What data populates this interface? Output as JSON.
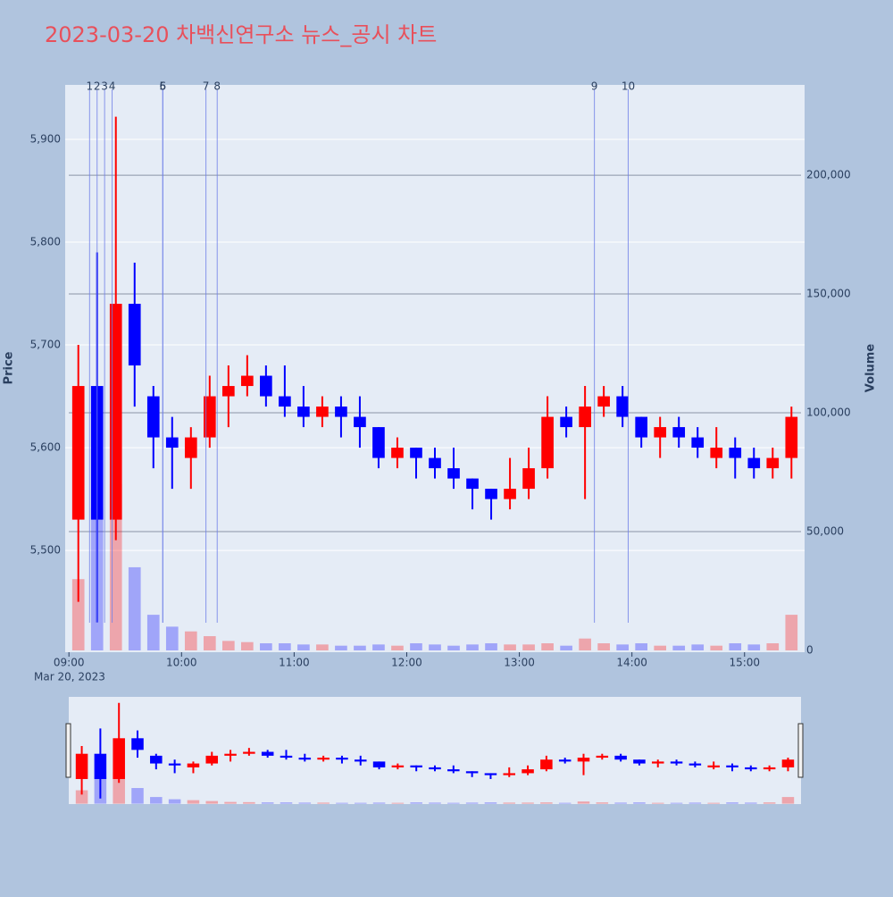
{
  "chart_data": {
    "type": "candlestick",
    "title": "2023-03-20 차백신연구소 뉴스_공시 차트",
    "x_date_label": "Mar 20, 2023",
    "y_title": "Price",
    "y2_title": "Volume",
    "increasing_color": "#ff0000",
    "decreasing_color": "#0000ff",
    "x": [
      "2023-03-20 09:00",
      "2023-03-20 09:10",
      "2023-03-20 09:20",
      "2023-03-20 09:30",
      "2023-03-20 09:40",
      "2023-03-20 09:50",
      "2023-03-20 10:00",
      "2023-03-20 10:10",
      "2023-03-20 10:20",
      "2023-03-20 10:30",
      "2023-03-20 10:40",
      "2023-03-20 10:50",
      "2023-03-20 11:00",
      "2023-03-20 11:10",
      "2023-03-20 11:20",
      "2023-03-20 11:30",
      "2023-03-20 11:40",
      "2023-03-20 11:50",
      "2023-03-20 12:00",
      "2023-03-20 12:10",
      "2023-03-20 12:20",
      "2023-03-20 12:30",
      "2023-03-20 12:40",
      "2023-03-20 12:50",
      "2023-03-20 13:00",
      "2023-03-20 13:10",
      "2023-03-20 13:20",
      "2023-03-20 13:30",
      "2023-03-20 13:40",
      "2023-03-20 13:50",
      "2023-03-20 14:00",
      "2023-03-20 14:10",
      "2023-03-20 14:20",
      "2023-03-20 14:30",
      "2023-03-20 14:40",
      "2023-03-20 14:50",
      "2023-03-20 15:00",
      "2023-03-20 15:10",
      "2023-03-20 15:20"
    ],
    "open": [
      5530,
      5660,
      5530,
      5740,
      5650,
      5610,
      5590,
      5610,
      5650,
      5660,
      5670,
      5650,
      5640,
      5630,
      5640,
      5630,
      5620,
      5590,
      5600,
      5590,
      5580,
      5570,
      5560,
      5550,
      5560,
      5580,
      5630,
      5620,
      5640,
      5650,
      5630,
      5610,
      5620,
      5610,
      5590,
      5600,
      5590,
      5580,
      5590
    ],
    "high": [
      5700,
      5790,
      5922,
      5780,
      5660,
      5630,
      5620,
      5670,
      5680,
      5690,
      5680,
      5680,
      5660,
      5650,
      5650,
      5650,
      5620,
      5610,
      5600,
      5600,
      5600,
      5570,
      5560,
      5590,
      5600,
      5650,
      5640,
      5660,
      5660,
      5660,
      5630,
      5630,
      5630,
      5620,
      5620,
      5610,
      5600,
      5600,
      5640
    ],
    "low": [
      5450,
      5430,
      5510,
      5640,
      5580,
      5560,
      5560,
      5600,
      5620,
      5650,
      5640,
      5630,
      5620,
      5620,
      5610,
      5600,
      5580,
      5580,
      5570,
      5570,
      5560,
      5540,
      5530,
      5540,
      5550,
      5570,
      5610,
      5550,
      5630,
      5620,
      5600,
      5590,
      5600,
      5590,
      5580,
      5570,
      5570,
      5570,
      5570
    ],
    "close": [
      5660,
      5530,
      5740,
      5680,
      5610,
      5600,
      5610,
      5650,
      5660,
      5670,
      5650,
      5640,
      5630,
      5640,
      5630,
      5620,
      5590,
      5600,
      5590,
      5580,
      5570,
      5560,
      5550,
      5560,
      5580,
      5630,
      5620,
      5640,
      5650,
      5630,
      5610,
      5620,
      5610,
      5600,
      5600,
      5590,
      5580,
      5590,
      5630
    ],
    "volume": [
      30000,
      60000,
      70000,
      35000,
      15000,
      10000,
      8000,
      6000,
      4000,
      3500,
      3000,
      3000,
      2500,
      2500,
      2000,
      2000,
      2500,
      2000,
      3000,
      2500,
      2000,
      2500,
      3000,
      2500,
      2500,
      3000,
      2000,
      5000,
      3000,
      2500,
      3000,
      2000,
      2000,
      2500,
      2000,
      3000,
      2500,
      3000,
      15000
    ],
    "xlim": [
      "2023-03-20 08:58",
      "2023-03-20 15:32"
    ],
    "xticks": [
      {
        "value": "2023-03-20 09:00",
        "label": "09:00"
      },
      {
        "value": "2023-03-20 10:00",
        "label": "10:00"
      },
      {
        "value": "2023-03-20 11:00",
        "label": "11:00"
      },
      {
        "value": "2023-03-20 12:00",
        "label": "12:00"
      },
      {
        "value": "2023-03-20 13:00",
        "label": "13:00"
      },
      {
        "value": "2023-03-20 14:00",
        "label": "14:00"
      },
      {
        "value": "2023-03-20 15:00",
        "label": "15:00"
      }
    ],
    "ylim": [
      5401,
      5953
    ],
    "yticks": [
      {
        "value": 5500,
        "label": "5,500"
      },
      {
        "value": 5600,
        "label": "5,600"
      },
      {
        "value": 5700,
        "label": "5,700"
      },
      {
        "value": 5800,
        "label": "5,800"
      },
      {
        "value": 5900,
        "label": "5,900"
      }
    ],
    "y2lim": [
      -750,
      238000
    ],
    "y2ticks": [
      0,
      {
        "value": 50000,
        "label": "50,000"
      },
      {
        "value": 100000,
        "label": "100,000"
      },
      {
        "value": 150000,
        "label": "150,000"
      },
      {
        "value": 200000,
        "label": "200,000"
      }
    ],
    "events": [
      {
        "label": "1",
        "x": "2023-03-20 09:11"
      },
      {
        "label": "2",
        "x": "2023-03-20 09:15"
      },
      {
        "label": "3",
        "x": "2023-03-20 09:19"
      },
      {
        "label": "4",
        "x": "2023-03-20 09:23"
      },
      {
        "label": "5",
        "x": "2023-03-20 09:50"
      },
      {
        "label": "6",
        "x": "2023-03-20 09:50"
      },
      {
        "label": "7",
        "x": "2023-03-20 10:13"
      },
      {
        "label": "8",
        "x": "2023-03-20 10:19"
      },
      {
        "label": "9",
        "x": "2023-03-20 13:40"
      },
      {
        "label": "10",
        "x": "2023-03-20 13:58"
      }
    ]
  }
}
